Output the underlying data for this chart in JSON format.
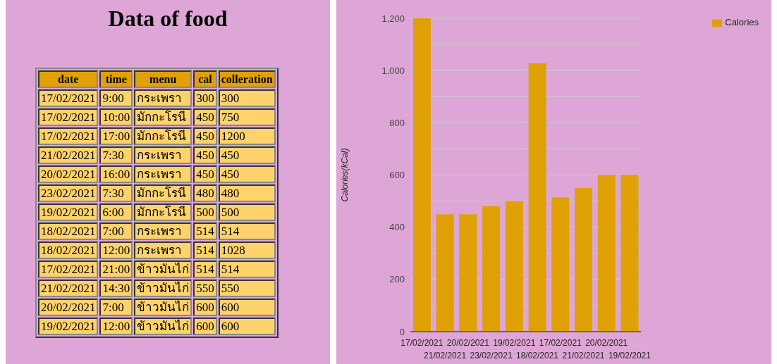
{
  "chart_data": [
    {
      "type": "other",
      "title": "Data of food",
      "categories": [
        "date",
        "time",
        "menu",
        "cal",
        "colleration"
      ],
      "cell_labels": [
        [
          "17/02/2021",
          "9:00",
          "กระเพรา",
          "300",
          "300"
        ],
        [
          "17/02/2021",
          "10:00",
          "มักกะโรนี",
          "450",
          "750"
        ],
        [
          "17/02/2021",
          "17:00",
          "มักกะโรนี",
          "450",
          "1200"
        ],
        [
          "21/02/2021",
          "7:30",
          "กระเพรา",
          "450",
          "450"
        ],
        [
          "20/02/2021",
          "16:00",
          "กระเพรา",
          "450",
          "450"
        ],
        [
          "23/02/2021",
          "7:30",
          "มักกะโรนี",
          "480",
          "480"
        ],
        [
          "19/02/2021",
          "6:00",
          "มักกะโรนี",
          "500",
          "500"
        ],
        [
          "18/02/2021",
          "7:00",
          "กระเพรา",
          "514",
          "514"
        ],
        [
          "18/02/2021",
          "12:00",
          "กระเพรา",
          "514",
          "1028"
        ],
        [
          "17/02/2021",
          "21:00",
          "ข้าวมันไก่",
          "514",
          "514"
        ],
        [
          "21/02/2021",
          "14:30",
          "ข้าวมันไก่",
          "550",
          "550"
        ],
        [
          "20/02/2021",
          "7:00",
          "ข้าวมันไก่",
          "600",
          "600"
        ],
        [
          "19/02/2021",
          "12:00",
          "ข้าวมันไก่",
          "600",
          "600"
        ]
      ]
    },
    {
      "type": "bar",
      "ylabel": "Calories(kCal)",
      "categories": [
        "17/02/2021",
        "21/02/2021",
        "20/02/2021",
        "23/02/2021",
        "19/02/2021",
        "18/02/2021",
        "17/02/2021",
        "21/02/2021",
        "20/02/2021",
        "19/02/2021"
      ],
      "series": [
        {
          "name": "Calories",
          "color": "#e0a106",
          "values": [
            1200,
            450,
            450,
            480,
            500,
            1028,
            514,
            550,
            600,
            600
          ]
        }
      ],
      "ylim": [
        0,
        1200
      ],
      "yticks": [
        0,
        {
          "value": 100,
          "label": null
        },
        200,
        {
          "value": 300,
          "label": null
        },
        400,
        {
          "value": 500,
          "label": null
        },
        600,
        {
          "value": 700,
          "label": null
        },
        800,
        {
          "value": 900,
          "label": null
        },
        {
          "value": 1000,
          "label": "1,000"
        },
        {
          "value": 1100,
          "label": null
        },
        {
          "value": 1200,
          "label": "1,200"
        }
      ],
      "grid": "y",
      "legend": "top right"
    }
  ]
}
